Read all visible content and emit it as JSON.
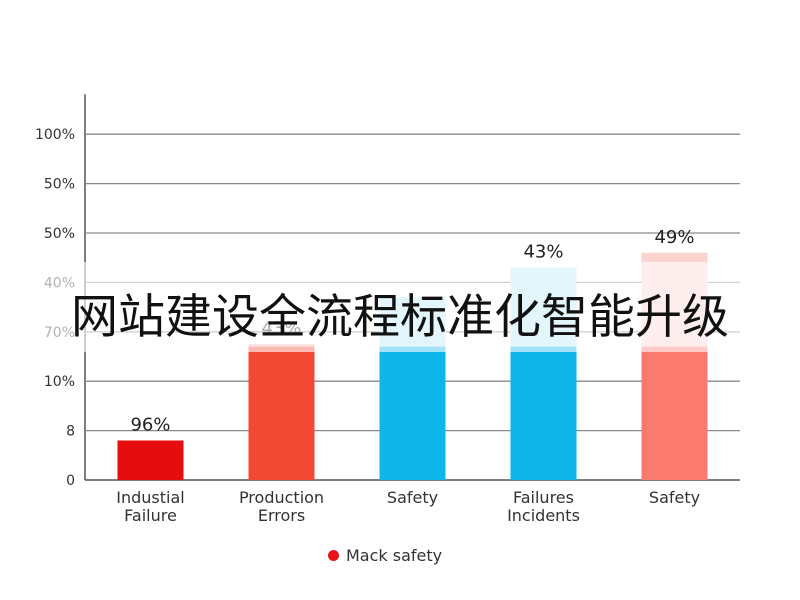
{
  "overlay": {
    "title": "网站建设全流程标准化智能升级"
  },
  "legend": {
    "label": "Mack safety",
    "color": "#e8141c"
  },
  "chart_data": {
    "type": "bar",
    "categories": [
      [
        "Industial",
        "Failure"
      ],
      [
        "Production",
        "Errors"
      ],
      [
        "Safety"
      ],
      [
        "Failures",
        "Incidents"
      ],
      [
        "Safety"
      ]
    ],
    "y_tick_labels": [
      "0",
      "8",
      "10%",
      "70%",
      "40%",
      "50%",
      "50%",
      "100%"
    ],
    "values_in_tick_steps": [
      0.8,
      2.7,
      2.7,
      2.7,
      2.7
    ],
    "light_tops_in_tick_steps": [
      null,
      2.75,
      3.7,
      4.3,
      4.6
    ],
    "bar_colors": [
      "#e50d0d",
      "#f24935",
      "#0fb6ea",
      "#0fb6ea",
      "#fa7a70"
    ],
    "light_colors": [
      null,
      "#f7b4ac",
      "#b3e6f6",
      "#b3e6f6",
      "#fbd3cf"
    ],
    "data_labels": [
      "96%",
      "43%",
      "",
      "43%",
      "49%"
    ],
    "grid": true,
    "legend_position": "bottom-center"
  }
}
